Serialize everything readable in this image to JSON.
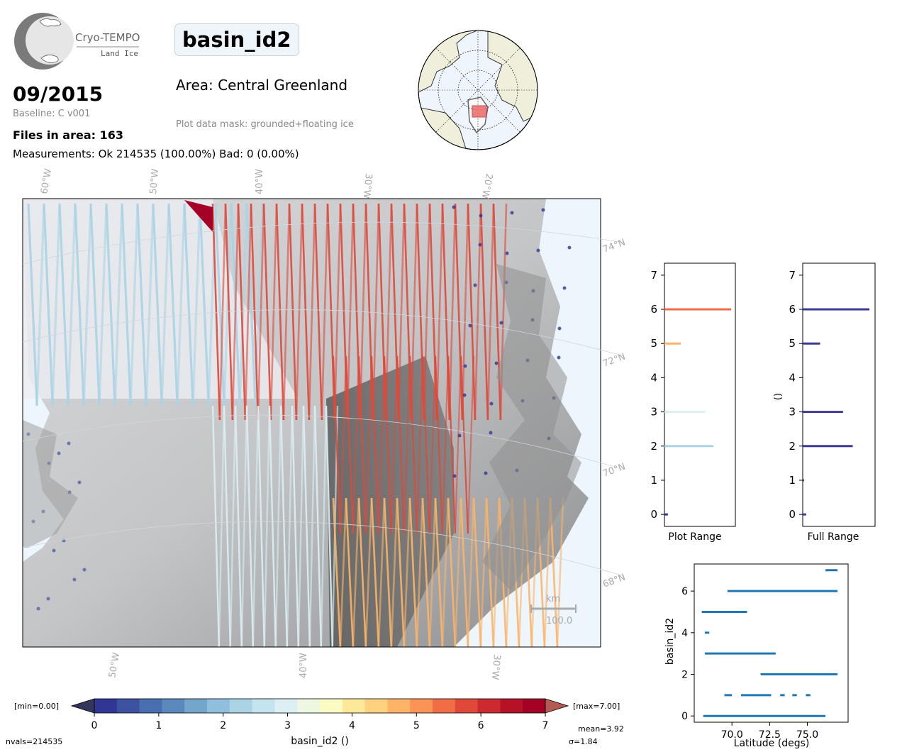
{
  "logo": {
    "name": "Cryo-TEMPO",
    "subtitle": "Land Ice"
  },
  "header": {
    "title": "basin_id2",
    "date": "09/2015",
    "baseline": "Baseline: C v001",
    "files_in_area": "Files in area: 163",
    "measurements": "Measurements: Ok 214535 (100.00%) Bad: 0 (0.00%)",
    "area": "Area: Central Greenland",
    "mask": "Plot data mask: grounded+floating ice"
  },
  "map": {
    "lon_labels_top": [
      "60°W",
      "50°W",
      "40°W",
      "30°W",
      "20°W"
    ],
    "lon_labels_bottom": [
      "50°W",
      "40°W",
      "30°W"
    ],
    "lat_labels": [
      "74°N",
      "72°N",
      "70°N",
      "68°N"
    ],
    "scale_unit": "km",
    "scale_value": "100.0",
    "ocean_color": "#eef6fd"
  },
  "colorbar": {
    "min_label": "[min=0.00]",
    "max_label": "[max=7.00]",
    "ticks": [
      "0",
      "1",
      "2",
      "3",
      "4",
      "5",
      "6",
      "7"
    ],
    "label": "basin_id2 ()",
    "colors": [
      "#313695",
      "#3d52a1",
      "#4a6fb0",
      "#5b88bd",
      "#74a6cc",
      "#8fbfdc",
      "#aad4e6",
      "#c3e4ef",
      "#dcf0f3",
      "#eef7e2",
      "#fbfbc4",
      "#fee99a",
      "#fed17f",
      "#fdb467",
      "#fa9353",
      "#f06d45",
      "#e0493a",
      "#cc2a30",
      "#b51227",
      "#a50026"
    ],
    "left_ext_color": "#33375c",
    "right_ext_color": "#b45a55",
    "nvals": "nvals=214535",
    "mean": "mean=3.92",
    "sigma": "σ=1.84"
  },
  "chart_data": [
    {
      "type": "bar",
      "orientation": "horizontal",
      "xlabel": "Plot Range",
      "ylabel": "",
      "ylim": [
        -0.35,
        7.35
      ],
      "yticks": [
        "0",
        "1",
        "2",
        "3",
        "4",
        "5",
        "6",
        "7"
      ],
      "categories": [
        0,
        1,
        2,
        3,
        4,
        5,
        6,
        7
      ],
      "values": [
        0.05,
        0.01,
        0.72,
        0.6,
        0.0,
        0.24,
        0.98,
        0.0
      ],
      "colors": [
        "#313695",
        "#4a6fb0",
        "#aad4e6",
        "#dcf0f3",
        "#fbfbc4",
        "#fdb467",
        "#f06d45",
        "#a50026"
      ]
    },
    {
      "type": "bar",
      "orientation": "horizontal",
      "xlabel": "Full Range",
      "ylabel": "()",
      "ylim": [
        -0.35,
        7.35
      ],
      "yticks": [
        "0",
        "1",
        "2",
        "3",
        "4",
        "5",
        "6",
        "7"
      ],
      "categories": [
        0,
        1,
        2,
        3,
        4,
        5,
        6,
        7
      ],
      "values": [
        0.05,
        0.02,
        0.72,
        0.58,
        0.0,
        0.25,
        0.96,
        0.0
      ],
      "color": "#3d3a96"
    },
    {
      "type": "scatter",
      "xlabel": "Latitude (degs)",
      "ylabel": "basin_id2",
      "xlim": [
        67.5,
        77.7
      ],
      "ylim": [
        -0.3,
        7.3
      ],
      "xticks": [
        "70.0",
        "72.5",
        "75.0"
      ],
      "yticks": [
        "0",
        "2",
        "4",
        "6"
      ],
      "color": "#1f77b4",
      "segments": [
        {
          "y": 0,
          "x": [
            68.1,
            76.2
          ]
        },
        {
          "y": 1,
          "x": [
            69.5,
            70.0
          ]
        },
        {
          "y": 1,
          "x": [
            70.6,
            72.6
          ]
        },
        {
          "y": 1,
          "x": [
            73.2,
            73.5
          ]
        },
        {
          "y": 1,
          "x": [
            74.0,
            74.3
          ]
        },
        {
          "y": 1,
          "x": [
            74.9,
            75.2
          ]
        },
        {
          "y": 2,
          "x": [
            71.9,
            77.0
          ]
        },
        {
          "y": 3,
          "x": [
            68.2,
            72.9
          ]
        },
        {
          "y": 4,
          "x": [
            68.2,
            68.5
          ]
        },
        {
          "y": 5,
          "x": [
            68.0,
            71.0
          ]
        },
        {
          "y": 6,
          "x": [
            69.7,
            77.0
          ]
        },
        {
          "y": 7,
          "x": [
            76.2,
            77.0
          ]
        }
      ]
    }
  ]
}
